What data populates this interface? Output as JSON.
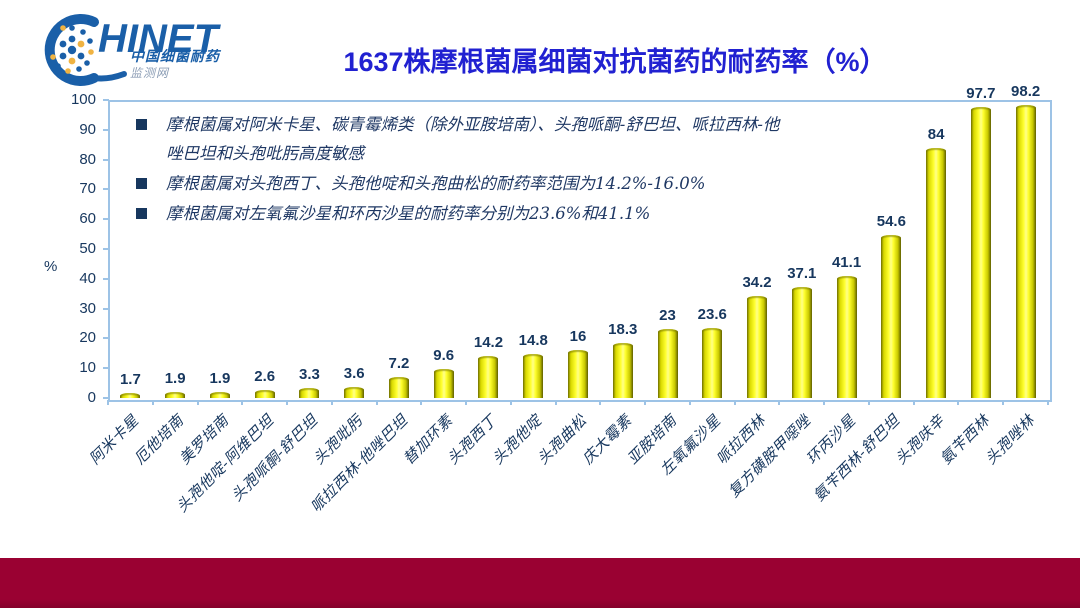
{
  "logo": {
    "brand": "HINET",
    "subtitle_line1": "中国细菌耐药",
    "subtitle_line2": "监测网"
  },
  "title": "1637株摩根菌属细菌对抗菌药的耐药率（%）",
  "annotations": {
    "bullet": "■",
    "items": [
      {
        "lines": [
          "摩根菌属对阿米卡星、碳青霉烯类（除外亚胺培南）、头孢哌酮-舒巴坦、哌拉西林-他",
          "唑巴坦和头孢吡肟高度敏感"
        ]
      },
      {
        "lines": [
          "摩根菌属对头孢西丁、头孢他啶和头孢曲松的耐药率范围为14.2%-16.0%"
        ]
      },
      {
        "lines": [
          "摩根菌属对左氧氟沙星和环丙沙星的耐药率分别为23.6%和41.1%"
        ]
      }
    ]
  },
  "chart_data": {
    "type": "bar",
    "title": "1637株摩根菌属细菌对抗菌药的耐药率（%）",
    "xlabel": "",
    "ylabel": "%",
    "ylim": [
      0,
      100
    ],
    "ytick_interval": 10,
    "grid": false,
    "legend": "none",
    "bar_color": "#ffff00",
    "categories": [
      "阿米卡星",
      "厄他培南",
      "美罗培南",
      "头孢他啶-阿维巴坦",
      "头孢哌酮-舒巴坦",
      "头孢吡肟",
      "哌拉西林-他唑巴坦",
      "替加环素",
      "头孢西丁",
      "头孢他啶",
      "头孢曲松",
      "庆大霉素",
      "亚胺培南",
      "左氧氟沙星",
      "哌拉西林",
      "复方磺胺甲噁唑",
      "环丙沙星",
      "氨苄西林-舒巴坦",
      "头孢呋辛",
      "氨苄西林",
      "头孢唑林"
    ],
    "values": [
      1.7,
      1.9,
      1.9,
      2.6,
      3.3,
      3.6,
      7.2,
      9.6,
      14.2,
      14.8,
      16,
      18.3,
      23,
      23.6,
      34.2,
      37.1,
      41.1,
      54.6,
      84,
      97.7,
      98.2
    ]
  },
  "colors": {
    "title_blue": "#2121d1",
    "text_navy": "#17375e",
    "axis_light_blue": "#9dc3e6",
    "bar_yellow": "#ffff00",
    "footer_maroon": "#9a0132"
  }
}
